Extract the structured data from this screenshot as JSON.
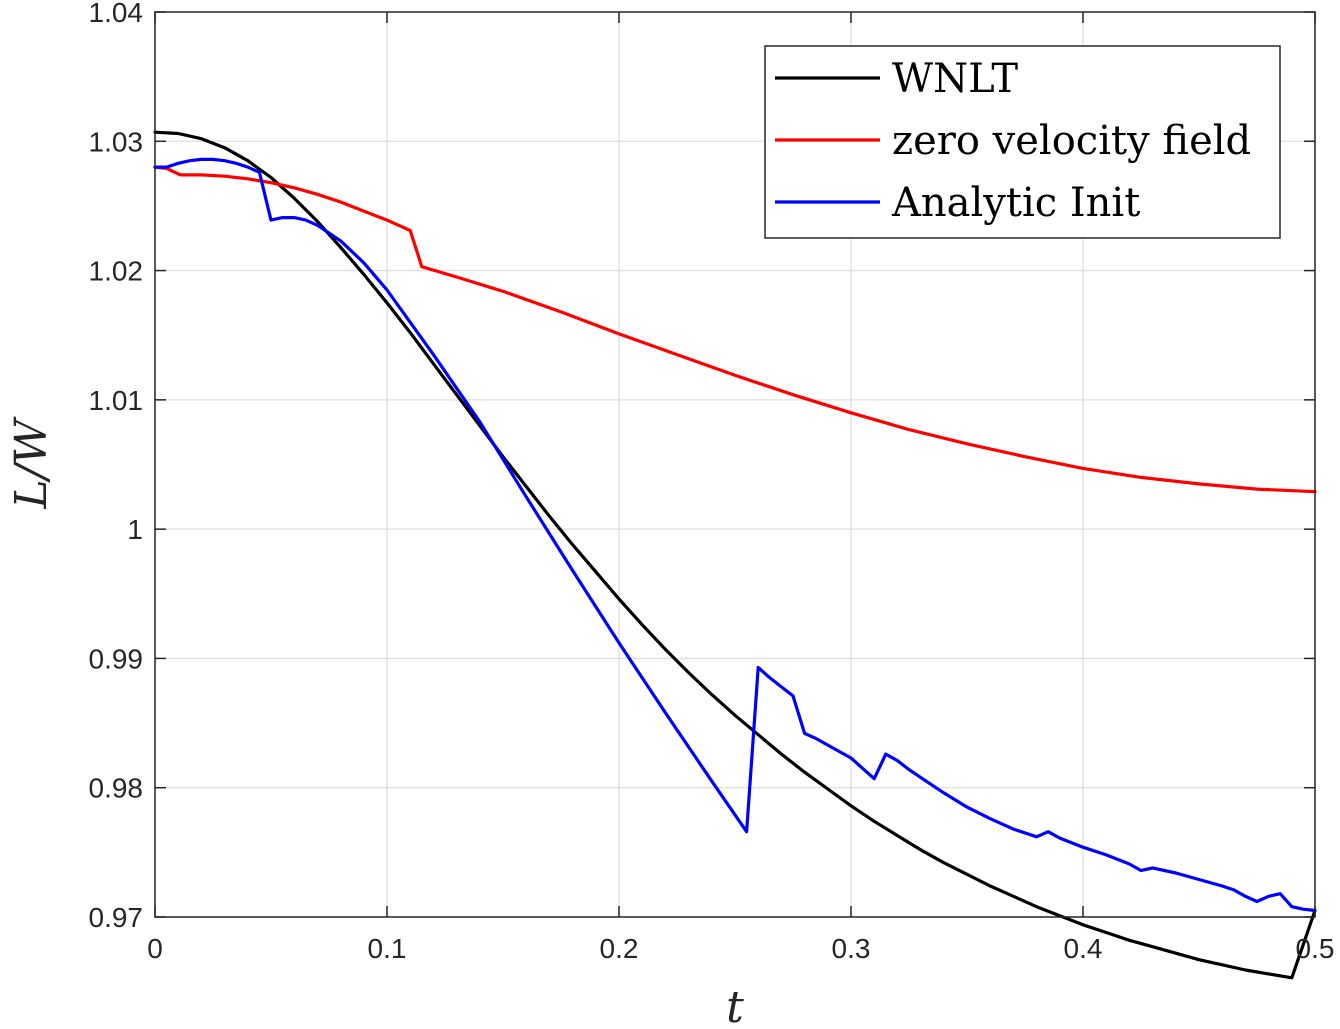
{
  "chart_data": {
    "type": "line",
    "xlabel": "t",
    "ylabel": "L/W",
    "xlim": [
      0,
      0.5
    ],
    "ylim": [
      0.97,
      1.04
    ],
    "grid": true,
    "legend_position": "top-right",
    "x_ticks": [
      "0",
      "0.1",
      "0.2",
      "0.3",
      "0.4",
      "0.5"
    ],
    "y_ticks": [
      "0.97",
      "0.98",
      "0.99",
      "1",
      "1.01",
      "1.02",
      "1.03",
      "1.04"
    ],
    "x_tick_values": [
      0,
      0.1,
      0.2,
      0.3,
      0.4,
      0.5
    ],
    "y_tick_values": [
      0.97,
      0.98,
      0.99,
      1.0,
      1.01,
      1.02,
      1.03,
      1.04
    ],
    "series": [
      {
        "name": "WNLT",
        "color": "#000000",
        "x": [
          0,
          0.01,
          0.02,
          0.03,
          0.04,
          0.05,
          0.06,
          0.07,
          0.08,
          0.09,
          0.1,
          0.11,
          0.12,
          0.13,
          0.14,
          0.15,
          0.16,
          0.17,
          0.18,
          0.19,
          0.2,
          0.21,
          0.22,
          0.23,
          0.24,
          0.25,
          0.26,
          0.27,
          0.28,
          0.29,
          0.3,
          0.31,
          0.32,
          0.33,
          0.34,
          0.35,
          0.36,
          0.37,
          0.38,
          0.39,
          0.4,
          0.41,
          0.42,
          0.43,
          0.44,
          0.45,
          0.46,
          0.47,
          0.48,
          0.49,
          0.5
        ],
        "y": [
          1.0307,
          1.0306,
          1.0302,
          1.0295,
          1.0285,
          1.0272,
          1.0256,
          1.0238,
          1.0218,
          1.0197,
          1.0175,
          1.0152,
          1.0128,
          1.0104,
          1.008,
          1.0056,
          1.0033,
          1.001,
          0.9988,
          0.9967,
          0.9946,
          0.9926,
          0.9907,
          0.9889,
          0.9872,
          0.9856,
          0.9841,
          0.9826,
          0.9812,
          0.9799,
          0.9786,
          0.9774,
          0.9763,
          0.9752,
          0.9742,
          0.9733,
          0.9724,
          0.9716,
          0.9708,
          0.9701,
          0.9694,
          0.9688,
          0.9682,
          0.9677,
          0.9672,
          0.9667,
          0.9663,
          0.9659,
          0.9656,
          0.9653,
          0.9705
        ]
      },
      {
        "name": "zero velocity field",
        "color": "#ff0000",
        "x": [
          0,
          0.005,
          0.011,
          0.02,
          0.03,
          0.04,
          0.05,
          0.06,
          0.07,
          0.08,
          0.09,
          0.1,
          0.11,
          0.115,
          0.13,
          0.15,
          0.175,
          0.2,
          0.225,
          0.25,
          0.275,
          0.3,
          0.325,
          0.35,
          0.375,
          0.4,
          0.425,
          0.45,
          0.475,
          0.5
        ],
        "y": [
          1.028,
          1.0279,
          1.0274,
          1.0274,
          1.0273,
          1.0271,
          1.0268,
          1.0264,
          1.0259,
          1.0253,
          1.0246,
          1.0239,
          1.0231,
          1.0203,
          1.0195,
          1.0184,
          1.0168,
          1.0151,
          1.0135,
          1.0119,
          1.0104,
          1.009,
          1.0077,
          1.0066,
          1.0056,
          1.0047,
          1.004,
          1.0035,
          1.0031,
          1.0029
        ]
      },
      {
        "name": "Analytic Init",
        "color": "#0000ff",
        "x": [
          0,
          0.005,
          0.01,
          0.015,
          0.02,
          0.025,
          0.03,
          0.035,
          0.04,
          0.045,
          0.05,
          0.055,
          0.06,
          0.065,
          0.07,
          0.08,
          0.09,
          0.1,
          0.12,
          0.14,
          0.16,
          0.18,
          0.2,
          0.22,
          0.24,
          0.255,
          0.26,
          0.265,
          0.27,
          0.275,
          0.28,
          0.285,
          0.29,
          0.3,
          0.31,
          0.315,
          0.32,
          0.325,
          0.33,
          0.34,
          0.35,
          0.36,
          0.37,
          0.38,
          0.385,
          0.39,
          0.4,
          0.41,
          0.42,
          0.425,
          0.43,
          0.44,
          0.45,
          0.46,
          0.465,
          0.47,
          0.475,
          0.48,
          0.485,
          0.49,
          0.495,
          0.5
        ],
        "y": [
          1.028,
          1.028,
          1.0283,
          1.0285,
          1.0286,
          1.0286,
          1.0285,
          1.0283,
          1.028,
          1.0276,
          1.0239,
          1.0241,
          1.0241,
          1.0239,
          1.0235,
          1.0223,
          1.0206,
          1.0185,
          1.0135,
          1.0083,
          1.0025,
          0.9968,
          0.9912,
          0.9858,
          0.9805,
          0.9766,
          0.9893,
          0.9885,
          0.9878,
          0.9871,
          0.9842,
          0.9838,
          0.9833,
          0.9823,
          0.9807,
          0.9826,
          0.9821,
          0.9814,
          0.9808,
          0.9796,
          0.9785,
          0.9776,
          0.9768,
          0.9762,
          0.9766,
          0.9761,
          0.9754,
          0.9748,
          0.9741,
          0.9736,
          0.9738,
          0.9734,
          0.9729,
          0.9724,
          0.9721,
          0.9716,
          0.9712,
          0.9716,
          0.9718,
          0.9708,
          0.9706,
          0.9705
        ]
      }
    ]
  }
}
